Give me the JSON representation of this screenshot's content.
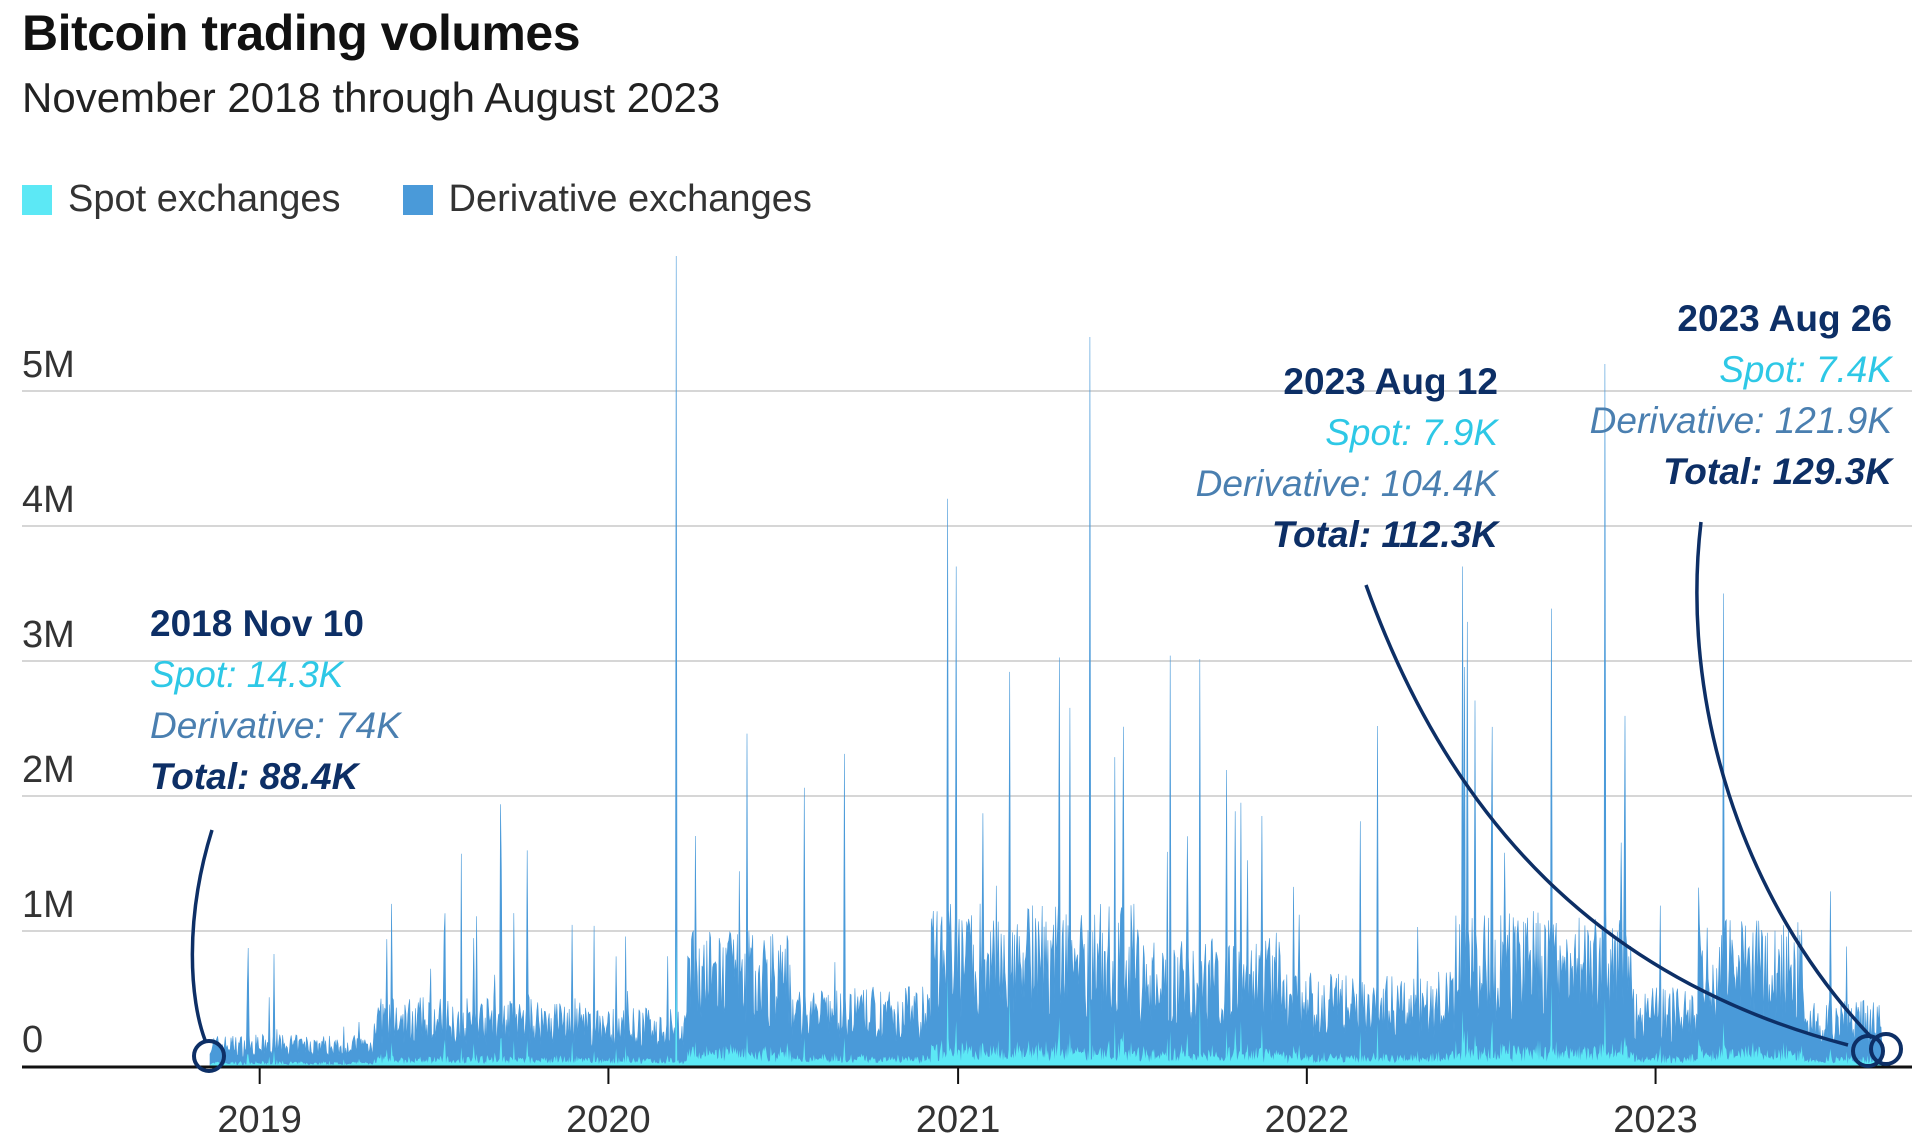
{
  "chart_data": {
    "type": "area",
    "title": "Bitcoin trading volumes",
    "subtitle": "November 2018 through August 2023",
    "legend": [
      {
        "name": "Spot exchanges",
        "color": "#5ce8f5"
      },
      {
        "name": "Derivative exchanges",
        "color": "#4a9ad9"
      }
    ],
    "xlabel": "",
    "ylabel": "",
    "x_range": [
      "2018-11-10",
      "2023-08-26"
    ],
    "x_ticks": [
      "2019",
      "2020",
      "2021",
      "2022",
      "2023"
    ],
    "y_ticks": [
      {
        "value": 0,
        "label": "0"
      },
      {
        "value": 1000000,
        "label": "1M"
      },
      {
        "value": 2000000,
        "label": "2M"
      },
      {
        "value": 3000000,
        "label": "3M"
      },
      {
        "value": 4000000,
        "label": "4M"
      },
      {
        "value": 5000000,
        "label": "5M"
      }
    ],
    "ylim": [
      0,
      6000000
    ],
    "series_description": "Daily volumes (stacked): spot near the bottom, derivative stacked above",
    "notable_spikes": [
      {
        "date": "2020-03-12",
        "total": 6000000
      },
      {
        "date": "2021-05-19",
        "total": 5400000
      },
      {
        "date": "2022-11-09",
        "total": 5200000
      },
      {
        "date": "2022-06-13",
        "total": 3700000
      },
      {
        "date": "2020-12-30",
        "total": 3700000
      },
      {
        "date": "2023-03-13",
        "total": 3500000
      }
    ],
    "annotations": [
      {
        "date_label": "2018 Nov 10",
        "spot": "Spot: 14.3K",
        "derivative": "Derivative: 74K",
        "total": "Total: 88.4K",
        "total_value": 88400
      },
      {
        "date_label": "2023 Aug 12",
        "spot": "Spot: 7.9K",
        "derivative": "Derivative: 104.4K",
        "total": "Total: 112.3K",
        "total_value": 112300
      },
      {
        "date_label": "2023 Aug 26",
        "spot": "Spot: 7.4K",
        "derivative": "Derivative: 121.9K",
        "total": "Total: 129.3K",
        "total_value": 129300
      }
    ]
  }
}
